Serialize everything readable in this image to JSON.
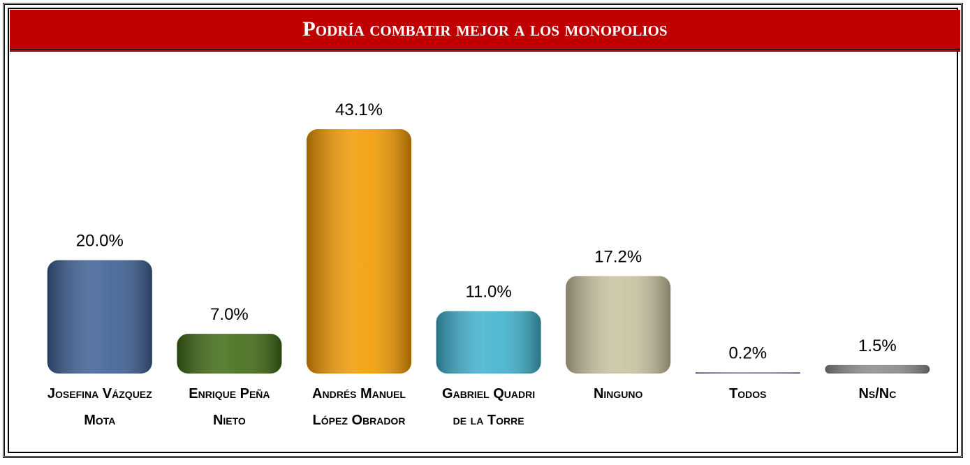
{
  "chart_data": {
    "type": "bar",
    "title": "Podría combatir mejor a los monopolios",
    "categories": [
      "Josefina Vázquez Mota",
      "Enrique Peña Nieto",
      "Andrés Manuel López Obrador",
      "Gabriel Quadri de la Torre",
      "Ninguno",
      "Todos",
      "Ns/Nc"
    ],
    "values": [
      20.0,
      7.0,
      43.1,
      11.0,
      17.2,
      0.2,
      1.5
    ],
    "value_labels": [
      "20.0%",
      "7.0%",
      "43.1%",
      "11.0%",
      "17.2%",
      "0.2%",
      "1.5%"
    ],
    "colors": [
      "#3d5f94",
      "#3f6a14",
      "#f29a00",
      "#3fb1cd",
      "#c8c2a0",
      "#5e5a8a",
      "#8a8a8a"
    ]
  }
}
